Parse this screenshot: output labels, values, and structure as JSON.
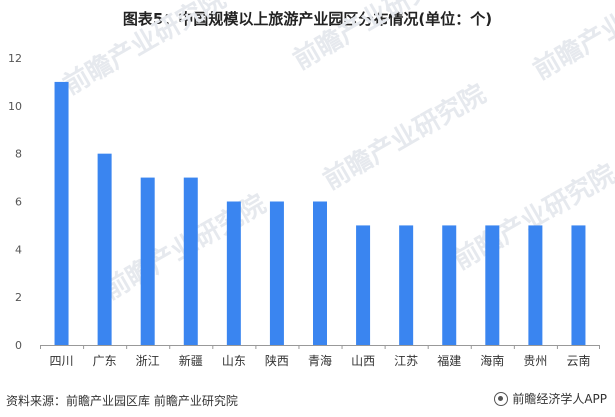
{
  "title": "图表5：中国规模以上旅游产业园区分布情况(单位：个)",
  "source": "资料来源：前瞻产业园区库 前瞻产业研究院",
  "brand": {
    "name": "前瞻经济学人APP",
    "icon": "qianzhan-logo-icon"
  },
  "watermark": {
    "text": "前瞻产业研究院"
  },
  "colors": {
    "bar": "#3a85f0",
    "axis": "#999999",
    "text": "#333333"
  },
  "chart_data": {
    "type": "bar",
    "title": "图表5：中国规模以上旅游产业园区分布情况(单位：个)",
    "categories": [
      "四川",
      "广东",
      "浙江",
      "新疆",
      "山东",
      "陕西",
      "青海",
      "山西",
      "江苏",
      "福建",
      "海南",
      "贵州",
      "云南"
    ],
    "values": [
      11,
      8,
      7,
      7,
      6,
      6,
      6,
      5,
      5,
      5,
      5,
      5,
      5
    ],
    "yticks": [
      0,
      2,
      4,
      6,
      8,
      10,
      12
    ],
    "ylim": [
      0,
      12
    ],
    "xlabel": "",
    "ylabel": "",
    "grid": false
  }
}
